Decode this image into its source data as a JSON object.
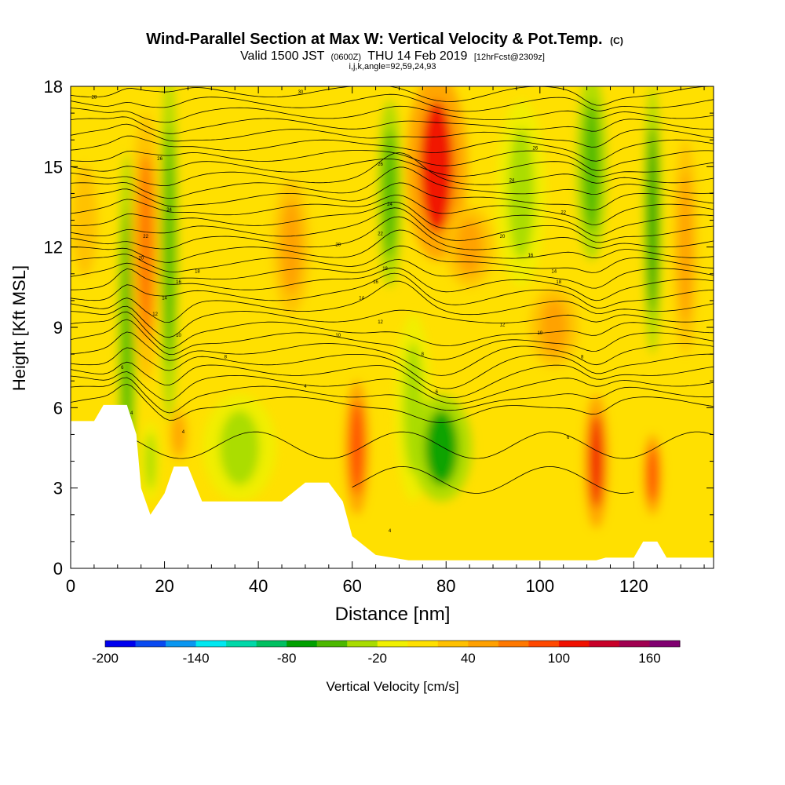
{
  "chart_data": {
    "type": "heatmap",
    "title": "Wind-Parallel Section at Max W: Vertical Velocity & Pot.Temp.",
    "title_suffix": "(C)",
    "subtitle_pre": "Valid 1500 JST",
    "subtitle_utc": "(0600Z)",
    "subtitle_date": "THU 14 Feb 2019",
    "subtitle_fcst": "[12hrFcst@2309z]",
    "subtitle_line2": "i,j,k,angle=92,59,24,93",
    "xlabel": "Distance [nm]",
    "ylabel": "Height [Kft MSL]",
    "xlim": [
      0,
      137
    ],
    "ylim": [
      0,
      18
    ],
    "x_ticks": [
      "0",
      "20",
      "40",
      "60",
      "80",
      "100",
      "120"
    ],
    "y_ticks": [
      "0",
      "3",
      "6",
      "9",
      "12",
      "15",
      "18"
    ],
    "colorbar": {
      "label": "Vertical Velocity [cm/s]",
      "min": -200,
      "max": 180,
      "step": 20,
      "tick_labels": [
        "-200",
        "-140",
        "-80",
        "-20",
        "40",
        "100",
        "160"
      ],
      "colors": [
        "#0000ee",
        "#0a4af0",
        "#0a96f0",
        "#00e8f0",
        "#00d8a8",
        "#00c060",
        "#00a000",
        "#4cb800",
        "#a8dc00",
        "#f0f000",
        "#ffe000",
        "#ffc000",
        "#ffa000",
        "#ff7800",
        "#ff4800",
        "#f01000",
        "#c80028",
        "#a00050",
        "#800070"
      ]
    },
    "terrain": [
      [
        0,
        5.5
      ],
      [
        5,
        5.5
      ],
      [
        7,
        6.1
      ],
      [
        12,
        6.1
      ],
      [
        14,
        5.0
      ],
      [
        15,
        3.0
      ],
      [
        17,
        2.0
      ],
      [
        20,
        2.8
      ],
      [
        22,
        3.8
      ],
      [
        25,
        3.8
      ],
      [
        28,
        2.5
      ],
      [
        45,
        2.5
      ],
      [
        50,
        3.2
      ],
      [
        55,
        3.2
      ],
      [
        58,
        2.5
      ],
      [
        60,
        1.2
      ],
      [
        65,
        0.5
      ],
      [
        72,
        0.3
      ],
      [
        110,
        0.3
      ],
      [
        112,
        0.3
      ],
      [
        114,
        0.4
      ],
      [
        116,
        0.4
      ],
      [
        118,
        0.4
      ],
      [
        120,
        0.4
      ],
      [
        122,
        1.0
      ],
      [
        125,
        1.0
      ],
      [
        127,
        0.4
      ],
      [
        137,
        0.4
      ]
    ],
    "vertical_velocity_features": [
      {
        "x": 12,
        "y": 8.5,
        "width_nm": 1.5,
        "height_kft": 14,
        "w": -60
      },
      {
        "x": 16,
        "y": 12,
        "width_nm": 2.5,
        "height_kft": 10,
        "w": 60
      },
      {
        "x": 21,
        "y": 12,
        "width_nm": 1.5,
        "height_kft": 13,
        "w": -50
      },
      {
        "x": 17,
        "y": 4,
        "width_nm": 1.5,
        "height_kft": 3,
        "w": -40
      },
      {
        "x": 23,
        "y": 5,
        "width_nm": 1.5,
        "height_kft": 2,
        "w": 50
      },
      {
        "x": 36,
        "y": 4.5,
        "width_nm": 6,
        "height_kft": 4,
        "w": -30
      },
      {
        "x": 61,
        "y": 4.5,
        "width_nm": 2,
        "height_kft": 5,
        "w": 80
      },
      {
        "x": 68,
        "y": 14,
        "width_nm": 2,
        "height_kft": 7,
        "w": -60
      },
      {
        "x": 73,
        "y": 6,
        "width_nm": 3,
        "height_kft": 7,
        "w": -30
      },
      {
        "x": 79,
        "y": 4.5,
        "width_nm": 5,
        "height_kft": 4,
        "w": -80
      },
      {
        "x": 78,
        "y": 15,
        "width_nm": 5,
        "height_kft": 7,
        "w": 110
      },
      {
        "x": 85,
        "y": 12,
        "width_nm": 4,
        "height_kft": 3,
        "w": 40
      },
      {
        "x": 96,
        "y": 14,
        "width_nm": 4,
        "height_kft": 7,
        "w": -40
      },
      {
        "x": 111,
        "y": 15,
        "width_nm": 2.5,
        "height_kft": 7,
        "w": -60
      },
      {
        "x": 112,
        "y": 4,
        "width_nm": 2,
        "height_kft": 5,
        "w": 110
      },
      {
        "x": 124,
        "y": 13,
        "width_nm": 1.5,
        "height_kft": 10,
        "w": -70
      },
      {
        "x": 124,
        "y": 3.5,
        "width_nm": 1.5,
        "height_kft": 3,
        "w": 90
      },
      {
        "x": 131,
        "y": 12,
        "width_nm": 2,
        "height_kft": 8,
        "w": 50
      },
      {
        "x": 3,
        "y": 13,
        "width_nm": 4,
        "height_kft": 6,
        "w": 30
      },
      {
        "x": 47,
        "y": 12,
        "width_nm": 3,
        "height_kft": 5,
        "w": 40
      },
      {
        "x": 103,
        "y": 9,
        "width_nm": 4,
        "height_kft": 3,
        "w": 50
      }
    ],
    "theta_contours": {
      "count": 30,
      "base_y_kft": 6.2,
      "spacing_kft": 0.4,
      "labels": [
        {
          "x": 11,
          "y": 7.5,
          "text": "6"
        },
        {
          "x": 13,
          "y": 5.8,
          "text": "4"
        },
        {
          "x": 24,
          "y": 5.1,
          "text": "4"
        },
        {
          "x": 33,
          "y": 7.9,
          "text": "8"
        },
        {
          "x": 23,
          "y": 8.7,
          "text": "10"
        },
        {
          "x": 18,
          "y": 9.5,
          "text": "12"
        },
        {
          "x": 20,
          "y": 10.1,
          "text": "14"
        },
        {
          "x": 23,
          "y": 10.7,
          "text": "16"
        },
        {
          "x": 27,
          "y": 11.1,
          "text": "18"
        },
        {
          "x": 15,
          "y": 11.6,
          "text": "20"
        },
        {
          "x": 16,
          "y": 12.4,
          "text": "22"
        },
        {
          "x": 21,
          "y": 13.4,
          "text": "24"
        },
        {
          "x": 19,
          "y": 15.3,
          "text": "26"
        },
        {
          "x": 5,
          "y": 17.6,
          "text": "28"
        },
        {
          "x": 49,
          "y": 17.8,
          "text": "30"
        },
        {
          "x": 50,
          "y": 6.8,
          "text": "4"
        },
        {
          "x": 57,
          "y": 8.7,
          "text": "10"
        },
        {
          "x": 62,
          "y": 10.1,
          "text": "14"
        },
        {
          "x": 66,
          "y": 9.2,
          "text": "12"
        },
        {
          "x": 65,
          "y": 10.7,
          "text": "16"
        },
        {
          "x": 67,
          "y": 11.2,
          "text": "18"
        },
        {
          "x": 57,
          "y": 12.1,
          "text": "20"
        },
        {
          "x": 66,
          "y": 12.5,
          "text": "22"
        },
        {
          "x": 68,
          "y": 13.6,
          "text": "24"
        },
        {
          "x": 66,
          "y": 15.1,
          "text": "26"
        },
        {
          "x": 75,
          "y": 8.0,
          "text": "8"
        },
        {
          "x": 78,
          "y": 6.6,
          "text": "6"
        },
        {
          "x": 68,
          "y": 1.4,
          "text": "4"
        },
        {
          "x": 92,
          "y": 9.1,
          "text": "12"
        },
        {
          "x": 100,
          "y": 8.8,
          "text": "10"
        },
        {
          "x": 98,
          "y": 11.7,
          "text": "16"
        },
        {
          "x": 103,
          "y": 11.1,
          "text": "14"
        },
        {
          "x": 104,
          "y": 10.7,
          "text": "18"
        },
        {
          "x": 92,
          "y": 12.4,
          "text": "20"
        },
        {
          "x": 105,
          "y": 13.3,
          "text": "22"
        },
        {
          "x": 94,
          "y": 14.5,
          "text": "24"
        },
        {
          "x": 99,
          "y": 15.7,
          "text": "26"
        },
        {
          "x": 109,
          "y": 7.9,
          "text": "8"
        },
        {
          "x": 106,
          "y": 4.9,
          "text": "6"
        }
      ]
    },
    "base_color": "#ffe000"
  }
}
